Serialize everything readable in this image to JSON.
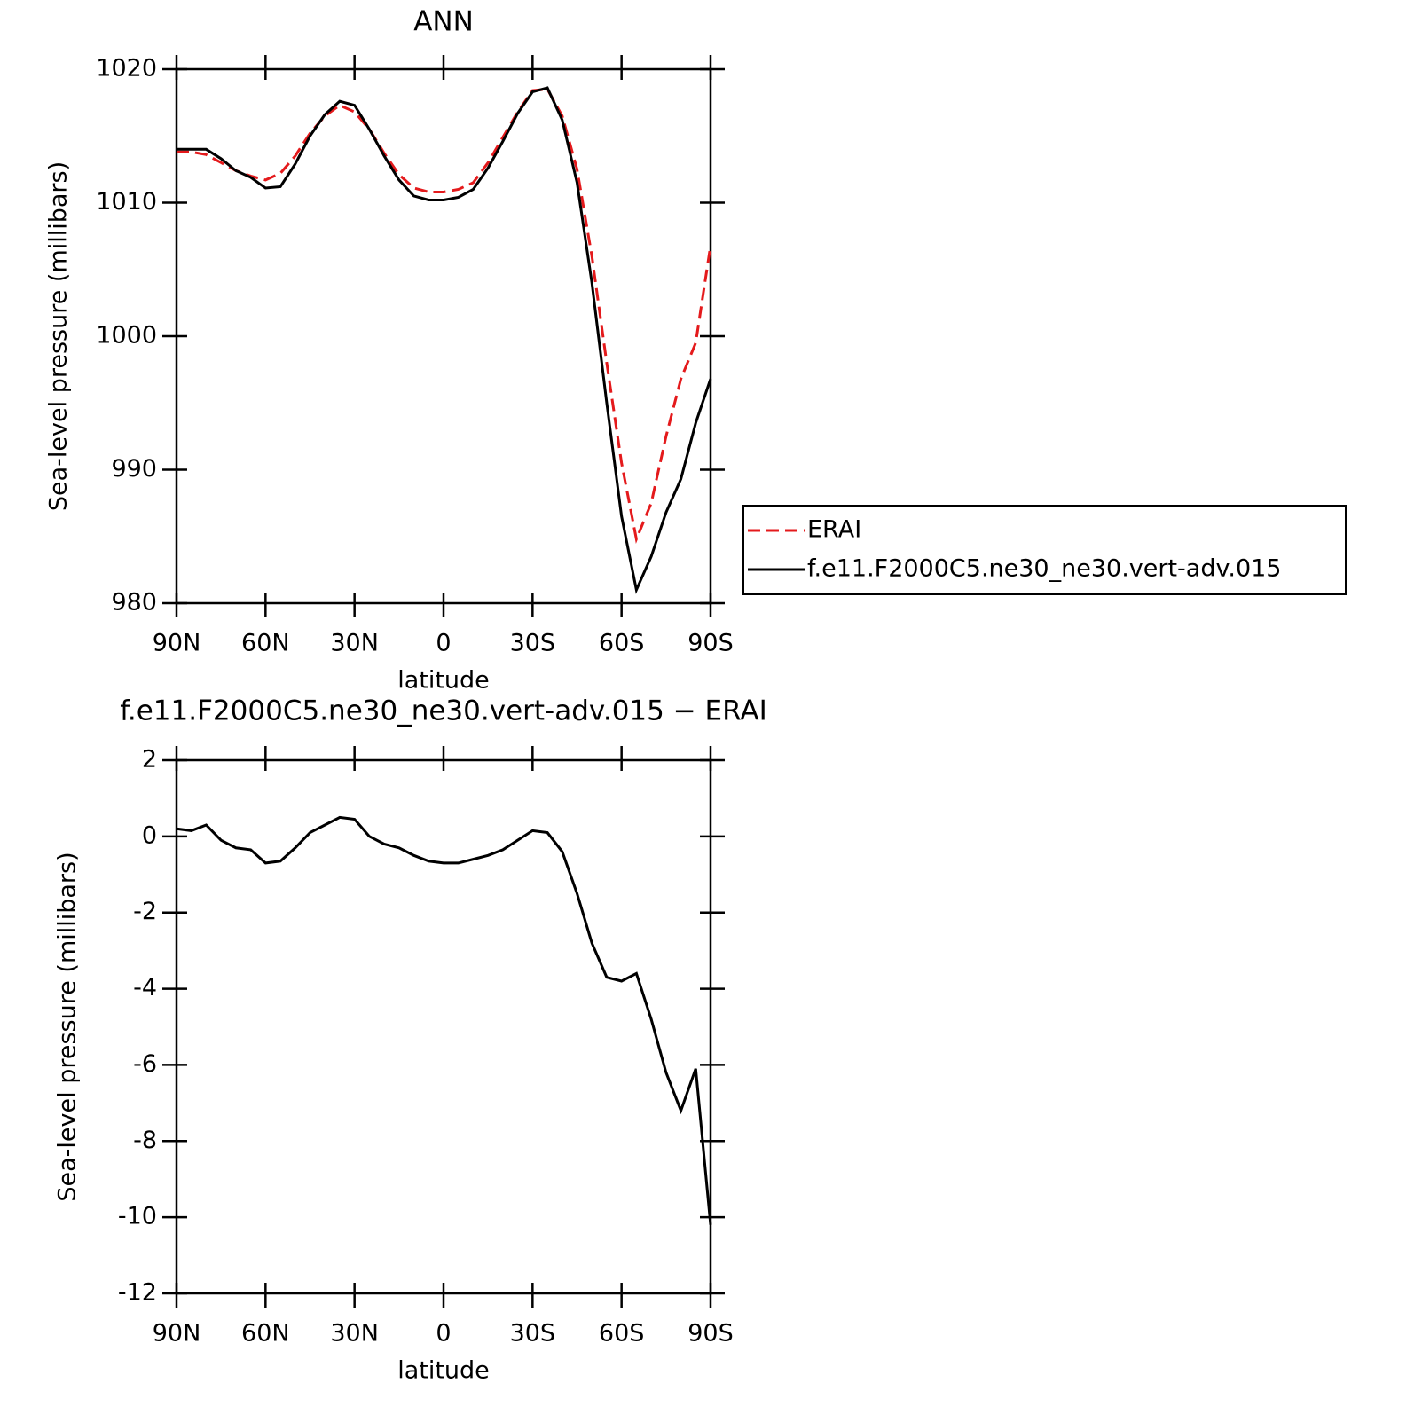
{
  "chart_data": [
    {
      "type": "line",
      "title": "ANN",
      "x_label": "latitude",
      "y_label": "Sea-level pressure (millibars)",
      "x": [
        90,
        85,
        80,
        75,
        70,
        65,
        60,
        55,
        50,
        45,
        40,
        35,
        30,
        25,
        20,
        15,
        10,
        5,
        0,
        -5,
        -10,
        -15,
        -20,
        -25,
        -30,
        -35,
        -40,
        -45,
        -50,
        -55,
        -60,
        -65,
        -70,
        -75,
        -80,
        -85,
        -90
      ],
      "series": [
        {
          "name": "ERAI",
          "color": "#e41a1c",
          "linestyle": "dashed",
          "values": [
            1013.8,
            1013.8,
            1013.6,
            1013.0,
            1012.4,
            1012.0,
            1011.7,
            1012.2,
            1013.5,
            1015.2,
            1016.5,
            1017.3,
            1016.8,
            1015.5,
            1013.7,
            1012.1,
            1011.1,
            1010.8,
            1010.8,
            1011.0,
            1011.5,
            1013.0,
            1014.9,
            1016.8,
            1018.4,
            1018.5,
            1016.5,
            1012.5,
            1006.0,
            998.0,
            990.5,
            984.8,
            987.5,
            992.5,
            996.8,
            999.5,
            1006.8
          ]
        },
        {
          "name": "f.e11.F2000C5.ne30_ne30.vert-adv.015",
          "color": "#000000",
          "linestyle": "solid",
          "values": [
            1014.0,
            1014.0,
            1014.0,
            1013.3,
            1012.4,
            1011.9,
            1011.1,
            1011.2,
            1012.9,
            1015.0,
            1016.6,
            1017.6,
            1017.3,
            1015.5,
            1013.5,
            1011.7,
            1010.5,
            1010.2,
            1010.2,
            1010.4,
            1011.0,
            1012.6,
            1014.6,
            1016.7,
            1018.3,
            1018.6,
            1016.2,
            1011.5,
            1004.0,
            995.0,
            986.5,
            981.0,
            983.5,
            986.8,
            989.3,
            993.5,
            996.8
          ]
        }
      ],
      "xlim": [
        90,
        -90
      ],
      "xticks": [
        {
          "value": 90,
          "label": "90N"
        },
        {
          "value": 60,
          "label": "60N"
        },
        {
          "value": 30,
          "label": "30N"
        },
        0,
        {
          "value": -30,
          "label": "30S"
        },
        {
          "value": -60,
          "label": "60S"
        },
        {
          "value": -90,
          "label": "90S"
        }
      ],
      "ylim": [
        980,
        1020
      ],
      "yticks": [
        980,
        990,
        1000,
        1010,
        1020
      ],
      "legend": "right"
    },
    {
      "type": "line",
      "title": "f.e11.F2000C5.ne30_ne30.vert-adv.015 − ERAI",
      "x_label": "latitude",
      "y_label": "Sea-level pressure (millibars)",
      "x": [
        90,
        85,
        80,
        75,
        70,
        65,
        60,
        55,
        50,
        45,
        40,
        35,
        30,
        25,
        20,
        15,
        10,
        5,
        0,
        -5,
        -10,
        -15,
        -20,
        -25,
        -30,
        -35,
        -40,
        -45,
        -50,
        -55,
        -60,
        -65,
        -70,
        -75,
        -80,
        -85,
        -90
      ],
      "series": [
        {
          "color": "#000000",
          "linestyle": "solid",
          "values": [
            0.2,
            0.15,
            0.3,
            -0.1,
            -0.3,
            -0.35,
            -0.7,
            -0.65,
            -0.3,
            0.1,
            0.3,
            0.5,
            0.45,
            0.0,
            -0.2,
            -0.3,
            -0.5,
            -0.65,
            -0.7,
            -0.7,
            -0.6,
            -0.5,
            -0.35,
            -0.1,
            0.15,
            0.1,
            -0.4,
            -1.5,
            -2.8,
            -3.7,
            -3.8,
            -3.6,
            -4.8,
            -6.2,
            -7.2,
            -6.1,
            -10.2
          ]
        }
      ],
      "xlim": [
        90,
        -90
      ],
      "xticks": [
        {
          "value": 90,
          "label": "90N"
        },
        {
          "value": 60,
          "label": "60N"
        },
        {
          "value": 30,
          "label": "30N"
        },
        0,
        {
          "value": -30,
          "label": "30S"
        },
        {
          "value": -60,
          "label": "60S"
        },
        {
          "value": -90,
          "label": "90S"
        }
      ],
      "ylim": [
        -12,
        2
      ],
      "yticks": [
        -12,
        -10,
        -8,
        -6,
        -4,
        -2,
        0,
        2
      ]
    }
  ]
}
